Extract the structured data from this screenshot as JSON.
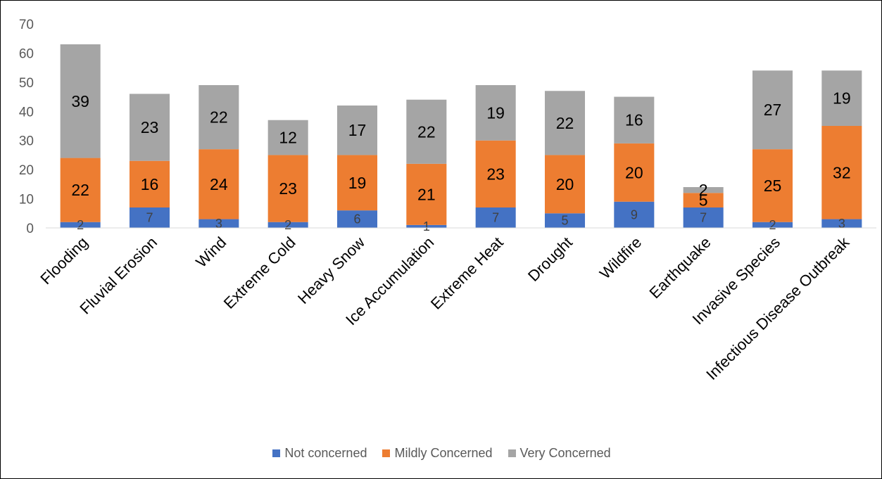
{
  "chart_data": {
    "type": "bar",
    "stacked": true,
    "categories": [
      "Flooding",
      "Fluvial Erosion",
      "Wind",
      "Extreme Cold",
      "Heavy Snow",
      "Ice Accumulation",
      "Extreme Heat",
      "Drought",
      "Wildfire",
      "Earthquake",
      "Invasive Species",
      "Infectious Disease Outbreak"
    ],
    "series": [
      {
        "name": "Not concerned",
        "color": "#4472C4",
        "values": [
          2,
          7,
          3,
          2,
          6,
          1,
          7,
          5,
          9,
          7,
          2,
          3
        ]
      },
      {
        "name": "Mildly Concerned",
        "color": "#ED7D31",
        "values": [
          22,
          16,
          24,
          23,
          19,
          21,
          23,
          20,
          20,
          5,
          25,
          32
        ]
      },
      {
        "name": "Very Concerned",
        "color": "#A5A5A5",
        "values": [
          39,
          23,
          22,
          12,
          17,
          22,
          19,
          22,
          16,
          2,
          27,
          19
        ]
      }
    ],
    "ylim": [
      0,
      70
    ],
    "yticks": [
      0,
      10,
      20,
      30,
      40,
      50,
      60,
      70
    ],
    "grid": false,
    "legend": "bottom"
  }
}
